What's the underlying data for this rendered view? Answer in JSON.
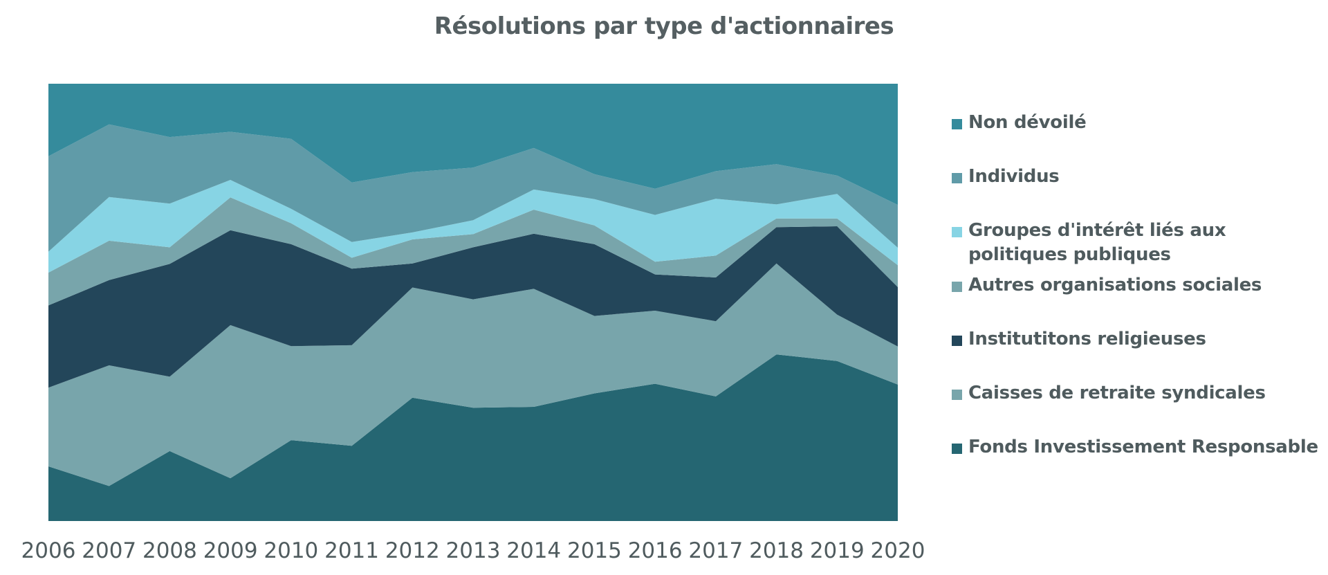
{
  "chart_data": {
    "type": "area",
    "stacked": true,
    "title": "Résolutions par type d'actionnaires",
    "x": [
      "2006",
      "2007",
      "2008",
      "2009",
      "2010",
      "2011",
      "2012",
      "2013",
      "2014",
      "2015",
      "2016",
      "2017",
      "2018",
      "2019",
      "2020"
    ],
    "series": [
      {
        "name": "Fonds Investissement Responsable",
        "color": "#256672",
        "values": [
          12.5,
          8.0,
          16.0,
          9.8,
          18.5,
          17.2,
          28.2,
          25.9,
          26.1,
          29.2,
          31.4,
          28.5,
          38.1,
          36.6,
          31.2
        ]
      },
      {
        "name": "Caisses de retraite syndicales",
        "color": "#78a5ab",
        "values": [
          18.0,
          27.6,
          17.0,
          35.0,
          21.5,
          23.0,
          25.2,
          24.8,
          27.0,
          17.7,
          16.7,
          17.2,
          20.8,
          10.6,
          8.7
        ]
      },
      {
        "name": "Institutitons religieuses",
        "color": "#23465a",
        "values": [
          18.8,
          19.5,
          25.8,
          21.7,
          23.3,
          17.5,
          5.5,
          11.9,
          12.6,
          16.4,
          8.3,
          10.0,
          8.3,
          20.2,
          13.6
        ]
      },
      {
        "name": "Autres organisations sociales",
        "color": "#78a5ab",
        "values": [
          7.5,
          9.0,
          3.8,
          7.5,
          4.8,
          2.5,
          5.5,
          3.0,
          5.5,
          4.3,
          2.9,
          5.0,
          2.0,
          1.8,
          5.0
        ]
      },
      {
        "name": "Groupes d'intérêt liés aux politiques publiques",
        "color": "#87d4e4",
        "values": [
          4.8,
          10.0,
          10.0,
          4.0,
          3.3,
          3.6,
          1.6,
          3.2,
          4.6,
          6.0,
          10.7,
          13.0,
          3.2,
          5.6,
          4.0
        ]
      },
      {
        "name": "Individus",
        "color": "#609ba8",
        "values": [
          21.8,
          16.6,
          15.2,
          11.0,
          16.0,
          13.6,
          13.8,
          12.0,
          9.5,
          5.7,
          6.0,
          6.3,
          9.2,
          4.2,
          9.8
        ]
      },
      {
        "name": "Non dévoilé",
        "color": "#358b9c",
        "values": [
          16.6,
          9.3,
          12.2,
          11.0,
          12.6,
          22.6,
          20.2,
          19.2,
          14.7,
          20.7,
          24.0,
          20.0,
          18.4,
          21.0,
          27.7
        ]
      }
    ],
    "ylim": [
      0,
      100
    ],
    "legend_position": "right",
    "grid": false
  }
}
